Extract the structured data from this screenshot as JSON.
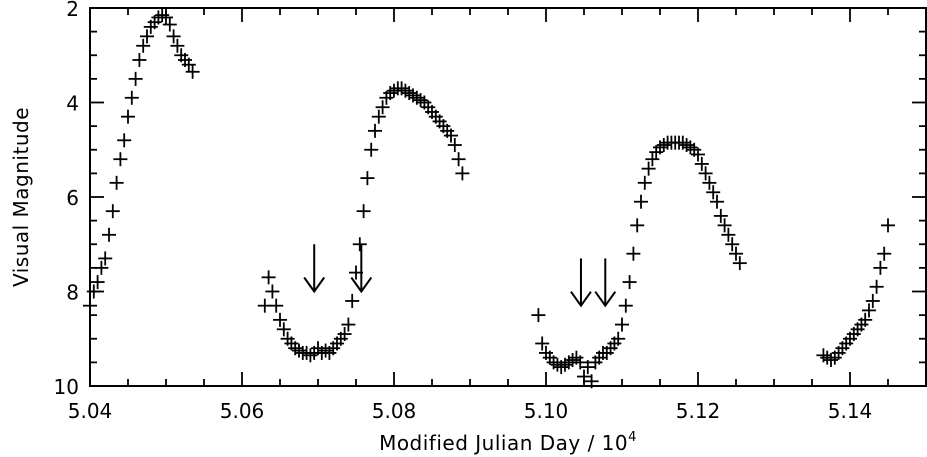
{
  "chart_data": {
    "type": "scatter",
    "marker": "plus",
    "xlabel": "Modified Julian Day / 10",
    "xlabel_superscript": "4",
    "ylabel": "Visual Magnitude",
    "xlim": [
      5.04,
      5.15
    ],
    "ylim": [
      10,
      2
    ],
    "y_inverted": true,
    "x_ticks": [
      5.04,
      5.06,
      5.08,
      5.1,
      5.12,
      5.14
    ],
    "x_tick_labels": [
      "5.04",
      "5.06",
      "5.08",
      "5.10",
      "5.12",
      "5.14"
    ],
    "x_minor_step": 0.005,
    "y_ticks": [
      2,
      4,
      6,
      8,
      10
    ],
    "y_tick_labels": [
      "2",
      "4",
      "6",
      "8",
      "10"
    ],
    "y_minor_step": 0.5,
    "grid": false,
    "colors": {
      "marker": "#000000",
      "axis": "#000000"
    },
    "annotations": [
      {
        "type": "down-arrow",
        "x": 5.0695,
        "y_tip": 8.0,
        "y_tail": 7.0
      },
      {
        "type": "down-arrow",
        "x": 5.0757,
        "y_tip": 8.0,
        "y_tail": 7.0
      },
      {
        "type": "down-arrow",
        "x": 5.1046,
        "y_tip": 8.3,
        "y_tail": 7.3
      },
      {
        "type": "down-arrow",
        "x": 5.1078,
        "y_tip": 8.3,
        "y_tail": 7.3
      }
    ],
    "series": [
      {
        "segment": "cycle-1",
        "x": [
          5.04,
          5.0405,
          5.041,
          5.0415,
          5.042,
          5.0425,
          5.043,
          5.0435,
          5.044,
          5.0445,
          5.045,
          5.0455,
          5.046,
          5.0465,
          5.047,
          5.0475,
          5.048,
          5.0485,
          5.049,
          5.0495,
          5.05,
          5.0505,
          5.051,
          5.0515,
          5.052,
          5.0525,
          5.053,
          5.0535
        ],
        "y": [
          8.3,
          8.0,
          7.8,
          7.5,
          7.3,
          6.8,
          6.3,
          5.7,
          5.2,
          4.8,
          4.3,
          3.9,
          3.5,
          3.1,
          2.8,
          2.6,
          2.4,
          2.3,
          2.2,
          2.15,
          2.2,
          2.35,
          2.6,
          2.8,
          3.0,
          3.1,
          3.2,
          3.35
        ]
      },
      {
        "segment": "cycle-2",
        "x": [
          5.063,
          5.0635,
          5.064,
          5.0645,
          5.065,
          5.0655,
          5.066,
          5.0665,
          5.067,
          5.0675,
          5.068,
          5.0685,
          5.069,
          5.0695,
          5.07,
          5.0705,
          5.071,
          5.0715,
          5.072,
          5.0725,
          5.073,
          5.0735,
          5.074,
          5.0745,
          5.075,
          5.0755,
          5.076,
          5.0765,
          5.077,
          5.0775,
          5.078,
          5.0785,
          5.079,
          5.0795,
          5.08,
          5.0805,
          5.081,
          5.0815,
          5.082,
          5.0825,
          5.083,
          5.0835,
          5.084,
          5.0845,
          5.085,
          5.0855,
          5.086,
          5.0865,
          5.087,
          5.0875,
          5.088,
          5.0885,
          5.089
        ],
        "y": [
          8.3,
          7.7,
          8.0,
          8.3,
          8.6,
          8.8,
          9.0,
          9.1,
          9.2,
          9.25,
          9.3,
          9.3,
          9.35,
          9.3,
          9.2,
          9.3,
          9.25,
          9.3,
          9.2,
          9.1,
          9.0,
          8.9,
          8.7,
          8.2,
          7.6,
          7.0,
          6.3,
          5.6,
          5.0,
          4.6,
          4.3,
          4.1,
          3.9,
          3.8,
          3.75,
          3.7,
          3.7,
          3.75,
          3.8,
          3.85,
          3.9,
          3.95,
          4.0,
          4.1,
          4.2,
          4.3,
          4.4,
          4.5,
          4.6,
          4.7,
          4.9,
          5.2,
          5.5
        ]
      },
      {
        "segment": "cycle-3",
        "x": [
          5.099,
          5.0995,
          5.1,
          5.1005,
          5.101,
          5.1015,
          5.102,
          5.1025,
          5.103,
          5.1035,
          5.104,
          5.1045,
          5.105,
          5.1055,
          5.106,
          5.1065,
          5.107,
          5.1075,
          5.108,
          5.1085,
          5.109,
          5.1095,
          5.11,
          5.1105,
          5.111,
          5.1115,
          5.112,
          5.1125,
          5.113,
          5.1135,
          5.114,
          5.1145,
          5.115,
          5.1155,
          5.116,
          5.1165,
          5.117,
          5.1175,
          5.118,
          5.1185,
          5.119,
          5.1195,
          5.12,
          5.1205,
          5.121,
          5.1215,
          5.122,
          5.1225,
          5.123,
          5.1235,
          5.124,
          5.1245,
          5.125,
          5.1255
        ],
        "y": [
          8.5,
          9.1,
          9.3,
          9.4,
          9.5,
          9.55,
          9.6,
          9.55,
          9.5,
          9.45,
          9.4,
          9.5,
          9.8,
          9.6,
          9.9,
          9.5,
          9.4,
          9.3,
          9.3,
          9.2,
          9.1,
          9.0,
          8.7,
          8.3,
          7.8,
          7.2,
          6.6,
          6.1,
          5.7,
          5.4,
          5.2,
          5.05,
          4.95,
          4.9,
          4.85,
          4.85,
          4.85,
          4.85,
          4.85,
          4.9,
          4.95,
          5.0,
          5.1,
          5.3,
          5.5,
          5.7,
          5.9,
          6.1,
          6.4,
          6.6,
          6.8,
          7.0,
          7.2,
          7.4
        ]
      },
      {
        "segment": "cycle-4",
        "x": [
          5.1365,
          5.137,
          5.1375,
          5.138,
          5.1385,
          5.139,
          5.1395,
          5.14,
          5.1405,
          5.141,
          5.1415,
          5.142,
          5.1425,
          5.143,
          5.1435,
          5.144,
          5.1445,
          5.145
        ],
        "y": [
          9.35,
          9.4,
          9.45,
          9.4,
          9.3,
          9.2,
          9.1,
          9.0,
          8.9,
          8.8,
          8.7,
          8.6,
          8.4,
          8.2,
          7.9,
          7.5,
          7.2,
          6.6
        ]
      }
    ]
  }
}
